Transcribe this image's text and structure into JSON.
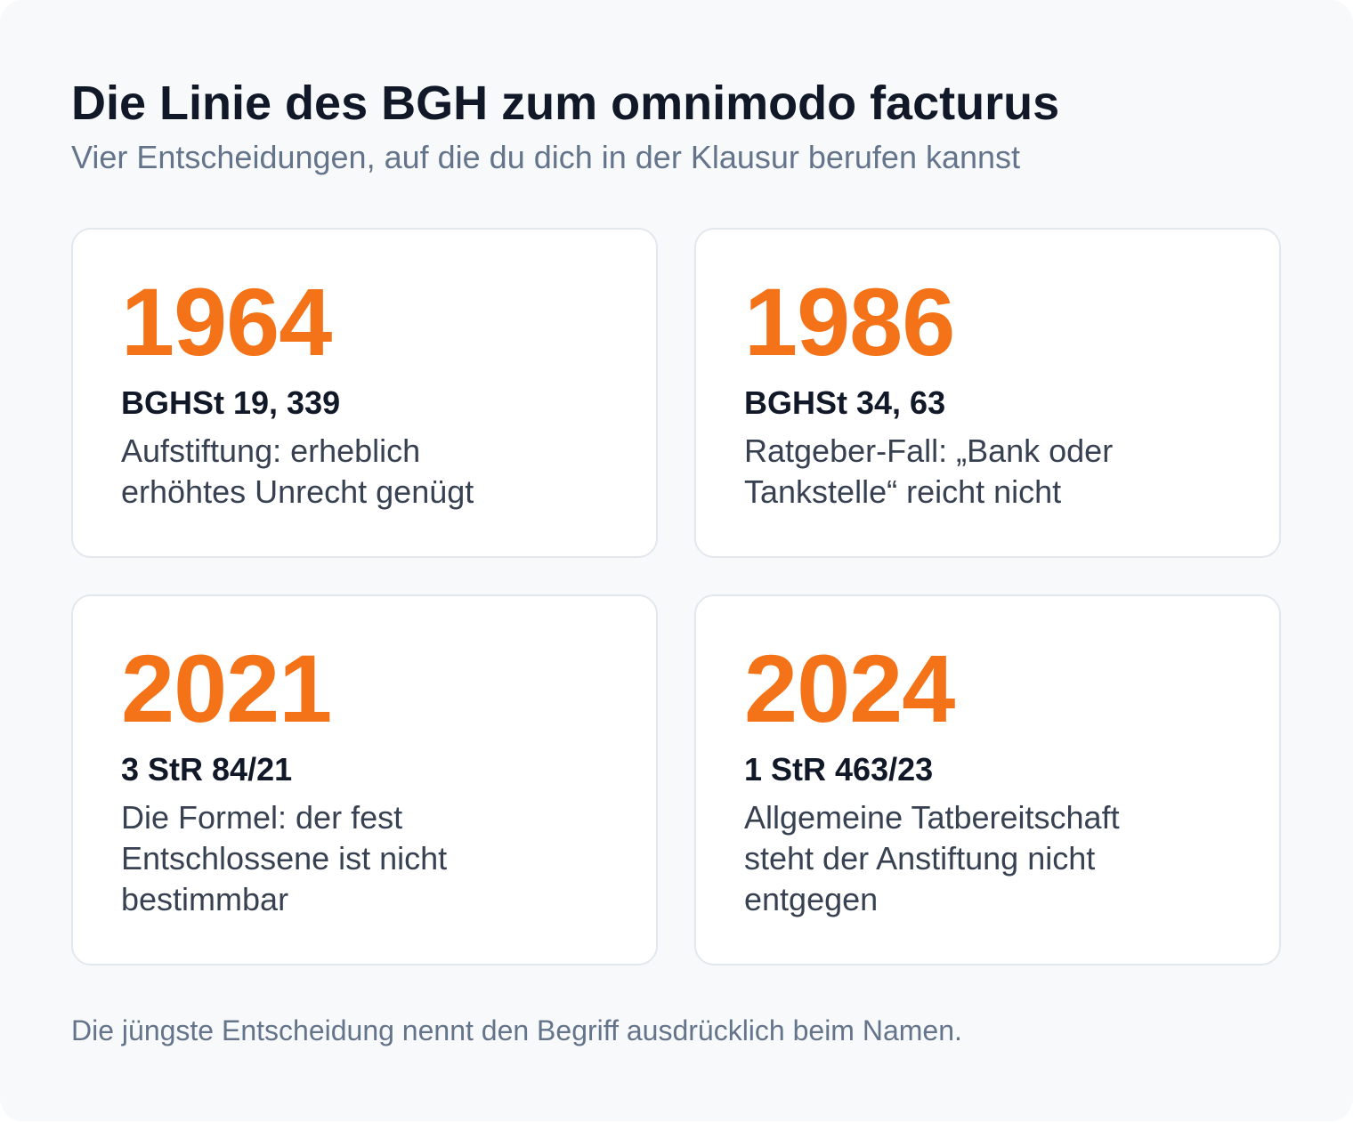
{
  "header": {
    "title": "Die Linie des BGH zum omnimodo facturus",
    "subtitle": "Vier Entscheidungen, auf die du dich in der Klausur berufen kannst"
  },
  "decisions": [
    {
      "year": "1964",
      "reference": "BGHSt 19, 339",
      "description": "Aufstiftung: erheblich erhöhtes Unrecht genügt"
    },
    {
      "year": "1986",
      "reference": "BGHSt 34, 63",
      "description": "Ratgeber-Fall: „Bank oder Tankstelle“ reicht nicht"
    },
    {
      "year": "2021",
      "reference": "3 StR 84/21",
      "description": "Die Formel: der fest Entschlossene ist nicht bestimmbar"
    },
    {
      "year": "2024",
      "reference": "1 StR 463/23",
      "description": "Allgemeine Tatbereitschaft steht der Anstiftung nicht entgegen"
    }
  ],
  "footnote": "Die jüngste Entscheidung nennt den Begriff ausdrücklich beim Namen.",
  "colors": {
    "accent": "#f47318",
    "heading": "#111827",
    "muted": "#64748b",
    "card_border": "#e3e7ee",
    "background": "#f8f9fb"
  }
}
